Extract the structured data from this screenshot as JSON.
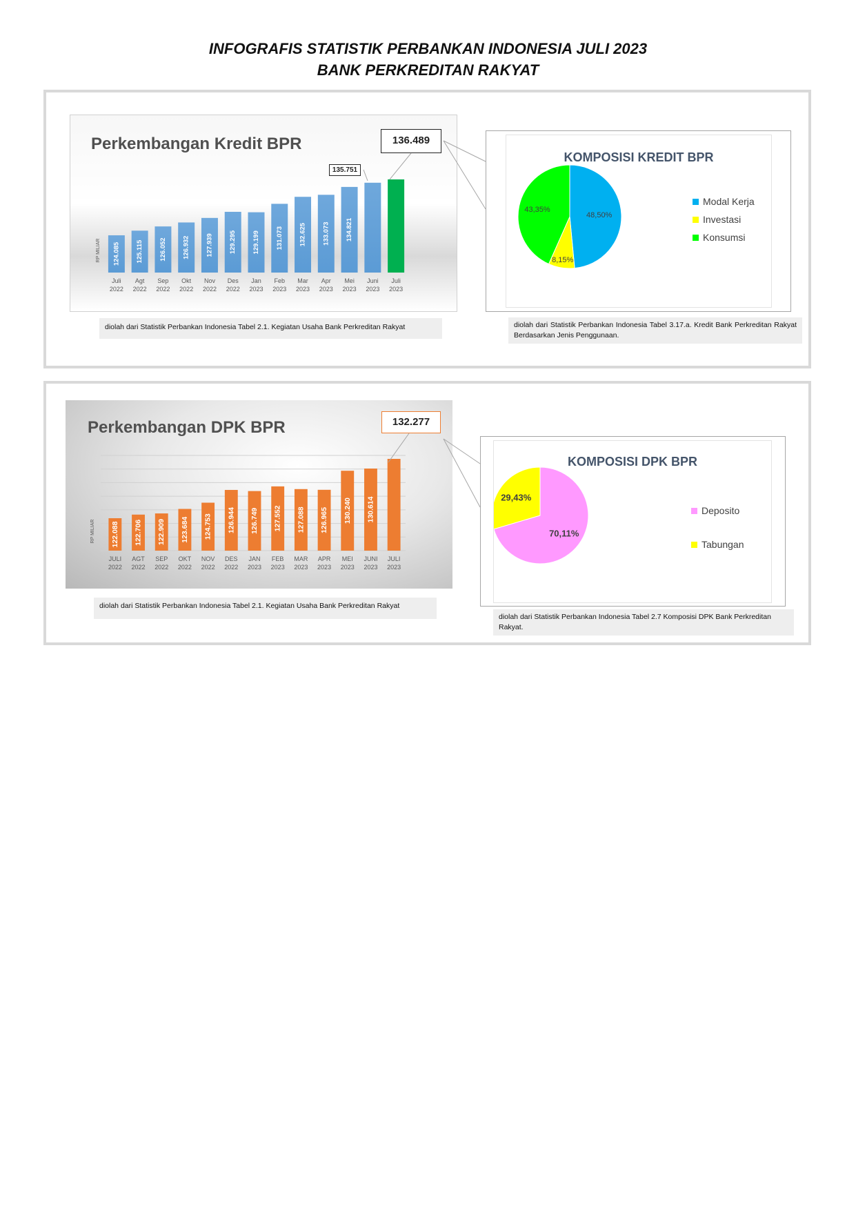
{
  "page": {
    "title_line1": "INFOGRAFIS STATISTIK PERBANKAN INDONESIA JULI 2023",
    "title_line2": "BANK PERKREDITAN RAKYAT"
  },
  "colors": {
    "kredit_bar": "#5b9bd5",
    "kredit_last_bar": "#00b050",
    "dpk_bar": "#ed7d31",
    "modal_kerja": "#00b0f0",
    "investasi": "#ffff00",
    "konsumsi": "#00ff00",
    "deposito": "#ff99ff",
    "tabungan": "#ffff00"
  },
  "kredit": {
    "chart_title": "Perkembangan Kredit BPR",
    "callout_main": "136.489",
    "callout_prev": "135.751",
    "note": "diolah dari Statistik Perbankan Indonesia Tabel 2.1. Kegiatan Usaha Bank Perkreditan Rakyat"
  },
  "kredit_pie": {
    "title": "KOMPOSISI KREDIT BPR",
    "note": "diolah dari Statistik Perbankan Indonesia Tabel 3.17.a. Kredit Bank Perkreditan Rakyat Berdasarkan Jenis Penggunaan."
  },
  "dpk": {
    "chart_title": "Perkembangan DPK BPR",
    "callout_main": "132.277",
    "note": "diolah dari Statistik Perbankan Indonesia Tabel 2.1. Kegiatan Usaha Bank Perkreditan Rakyat"
  },
  "dpk_pie": {
    "title": "KOMPOSISI DPK BPR",
    "note": "diolah dari Statistik Perbankan Indonesia Tabel 2.7 Komposisi DPK Bank Perkreditan Rakyat."
  },
  "chart_data": [
    {
      "type": "bar",
      "title": "Perkembangan Kredit BPR",
      "ylabel": "RP MILIAR",
      "categories": [
        [
          "Juli",
          "2022"
        ],
        [
          "Agt",
          "2022"
        ],
        [
          "Sep",
          "2022"
        ],
        [
          "Okt",
          "2022"
        ],
        [
          "Nov",
          "2022"
        ],
        [
          "Des",
          "2022"
        ],
        [
          "Jan",
          "2023"
        ],
        [
          "Feb",
          "2023"
        ],
        [
          "Mar",
          "2023"
        ],
        [
          "Apr",
          "2023"
        ],
        [
          "Mei",
          "2023"
        ],
        [
          "Juni",
          "2023"
        ],
        [
          "Juli",
          "2023"
        ]
      ],
      "values": [
        124085,
        125115,
        126052,
        126932,
        127939,
        129295,
        129199,
        131073,
        132625,
        133073,
        134821,
        135751,
        136489
      ],
      "labels": [
        "124.085",
        "125.115",
        "126.052",
        "126.932",
        "127.939",
        "129.295",
        "129.199",
        "131.073",
        "132.625",
        "133.073",
        "134.821",
        "",
        ""
      ]
    },
    {
      "type": "pie",
      "title": "KOMPOSISI KREDIT BPR",
      "slices": [
        {
          "name": "Modal Kerja",
          "value": 48.5,
          "label": "48,50%"
        },
        {
          "name": "Investasi",
          "value": 8.15,
          "label": "8,15%"
        },
        {
          "name": "Konsumsi",
          "value": 43.35,
          "label": "43,35%"
        }
      ]
    },
    {
      "type": "bar",
      "title": "Perkembangan DPK BPR",
      "ylabel": "RP MILIAR",
      "categories": [
        [
          "JULI",
          "2022"
        ],
        [
          "AGT",
          "2022"
        ],
        [
          "SEP",
          "2022"
        ],
        [
          "OKT",
          "2022"
        ],
        [
          "NOV",
          "2022"
        ],
        [
          "DES",
          "2022"
        ],
        [
          "JAN",
          "2023"
        ],
        [
          "FEB",
          "2023"
        ],
        [
          "MAR",
          "2023"
        ],
        [
          "APR",
          "2023"
        ],
        [
          "MEI",
          "2023"
        ],
        [
          "JUNI",
          "2023"
        ],
        [
          "JULI",
          "2023"
        ]
      ],
      "values": [
        122088,
        122706,
        122909,
        123684,
        124753,
        126944,
        126749,
        127552,
        127088,
        126965,
        130240,
        130614,
        132277
      ],
      "labels": [
        "122.088",
        "122.706",
        "122.909",
        "123.684",
        "124.753",
        "126.944",
        "126.749",
        "127.552",
        "127.088",
        "126.965",
        "130.240",
        "130.614",
        ""
      ]
    },
    {
      "type": "pie",
      "title": "KOMPOSISI DPK BPR",
      "slices": [
        {
          "name": "Deposito",
          "value": 70.11,
          "label": "70,11%"
        },
        {
          "name": "Tabungan",
          "value": 29.43,
          "label": "29,43%"
        }
      ]
    }
  ]
}
